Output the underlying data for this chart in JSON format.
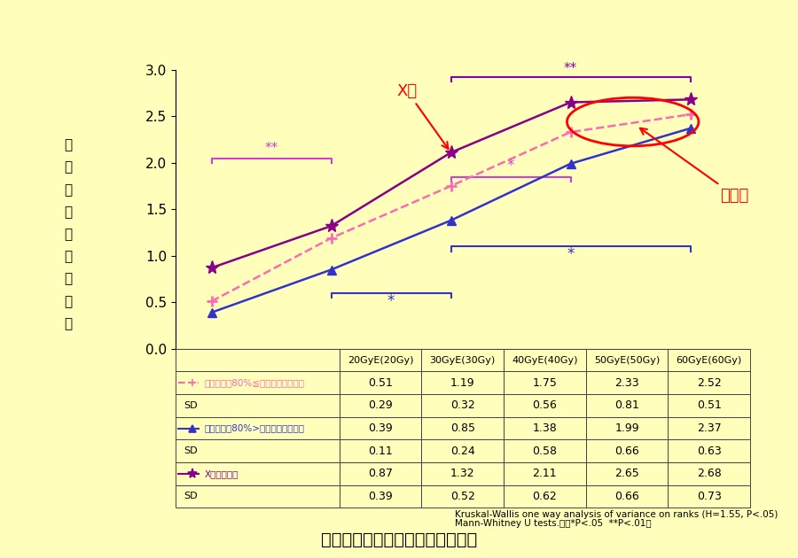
{
  "bg_color": "#FFFFBB",
  "x_labels": [
    "20GyE(20Gy)",
    "30GyE(30Gy)",
    "40GyE(40Gy)",
    "50GyE(50Gy)",
    "60GyE(60Gy)"
  ],
  "x_vals": [
    0,
    1,
    2,
    3,
    4
  ],
  "series1_vals": [
    0.51,
    1.19,
    1.75,
    2.33,
    2.52
  ],
  "series1_color": "#FF69B4",
  "series2_vals": [
    0.39,
    0.85,
    1.38,
    1.99,
    2.37
  ],
  "series2_color": "#3333CC",
  "series3_vals": [
    0.87,
    1.32,
    2.11,
    2.65,
    2.68
  ],
  "series3_color": "#880088",
  "table_row1_label": "口腔内照射80%≦の対象者の平均値",
  "table_row1_vals": [
    "0.51",
    "1.19",
    "1.75",
    "2.33",
    "2.52"
  ],
  "table_row1_sd": [
    "0.29",
    "0.32",
    "0.56",
    "0.81",
    "0.51"
  ],
  "table_row2_label": "口腔内照射80%>の対象者の平均値",
  "table_row2_vals": [
    "0.39",
    "0.85",
    "1.38",
    "1.99",
    "2.37"
  ],
  "table_row2_sd": [
    "0.11",
    "0.24",
    "0.58",
    "0.66",
    "0.63"
  ],
  "table_row3_label": "X線の平均値",
  "table_row3_vals": [
    "0.87",
    "1.32",
    "2.11",
    "2.65",
    "2.68"
  ],
  "table_row3_sd": [
    "0.39",
    "0.52",
    "0.62",
    "0.66",
    "0.73"
  ],
  "ylabel_chars": [
    "口",
    "腔",
    "粘",
    "膜",
    "炎",
    "の",
    "平",
    "均",
    "値"
  ],
  "ylim": [
    0.0,
    3.0
  ],
  "yticks": [
    0.0,
    0.5,
    1.0,
    1.5,
    2.0,
    2.5,
    3.0
  ],
  "footnote1": "Kruskal-Wallis one way analysis of variance on ranks (H=1.55, P<.05)",
  "footnote2": "Mann-Whitney U tests.　（*P<.05  **P<.01）",
  "main_title": "口腔粘膜炎の平均値の経時的変化",
  "annotation_xsen": "X線",
  "annotation_ryushi": "粒子線"
}
